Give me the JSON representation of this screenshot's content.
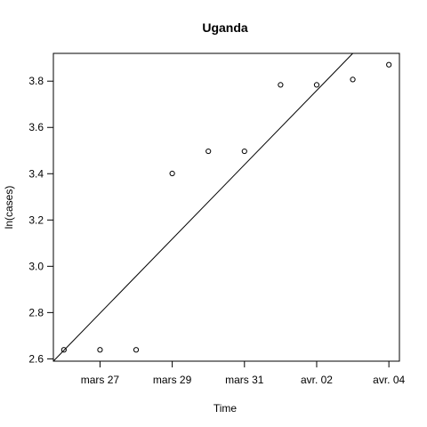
{
  "chart_data": {
    "type": "scatter",
    "title": "Uganda",
    "xlabel": "Time",
    "ylabel": "ln(cases)",
    "x_tick_labels": [
      "mars 27",
      "mars 29",
      "mars 31",
      "avr. 02",
      "avr. 04"
    ],
    "x_tick_dates": [
      "2020-03-27",
      "2020-03-29",
      "2020-03-31",
      "2020-04-02",
      "2020-04-04"
    ],
    "xlim": [
      "2020-03-25T17:00",
      "2020-04-04T07:00"
    ],
    "yticks": [
      2.6,
      2.8,
      3.0,
      3.2,
      3.4,
      3.6,
      3.8
    ],
    "ylim": [
      2.59,
      3.92
    ],
    "grid": false,
    "legend": "none",
    "series": [
      {
        "points": [
          {
            "x": "2020-03-26",
            "y": 2.639
          },
          {
            "x": "2020-03-27",
            "y": 2.639
          },
          {
            "x": "2020-03-28",
            "y": 2.639
          },
          {
            "x": "2020-03-29",
            "y": 3.401
          },
          {
            "x": "2020-03-30",
            "y": 3.497
          },
          {
            "x": "2020-03-31",
            "y": 3.497
          },
          {
            "x": "2020-04-01",
            "y": 3.784
          },
          {
            "x": "2020-04-02",
            "y": 3.784
          },
          {
            "x": "2020-04-03",
            "y": 3.807
          },
          {
            "x": "2020-04-04",
            "y": 3.871
          }
        ]
      }
    ],
    "fit_line": {
      "points": [
        {
          "x": "2020-03-25T17:00",
          "y": 2.59
        },
        {
          "x": "2020-04-03T00:00",
          "y": 3.92
        }
      ]
    }
  }
}
